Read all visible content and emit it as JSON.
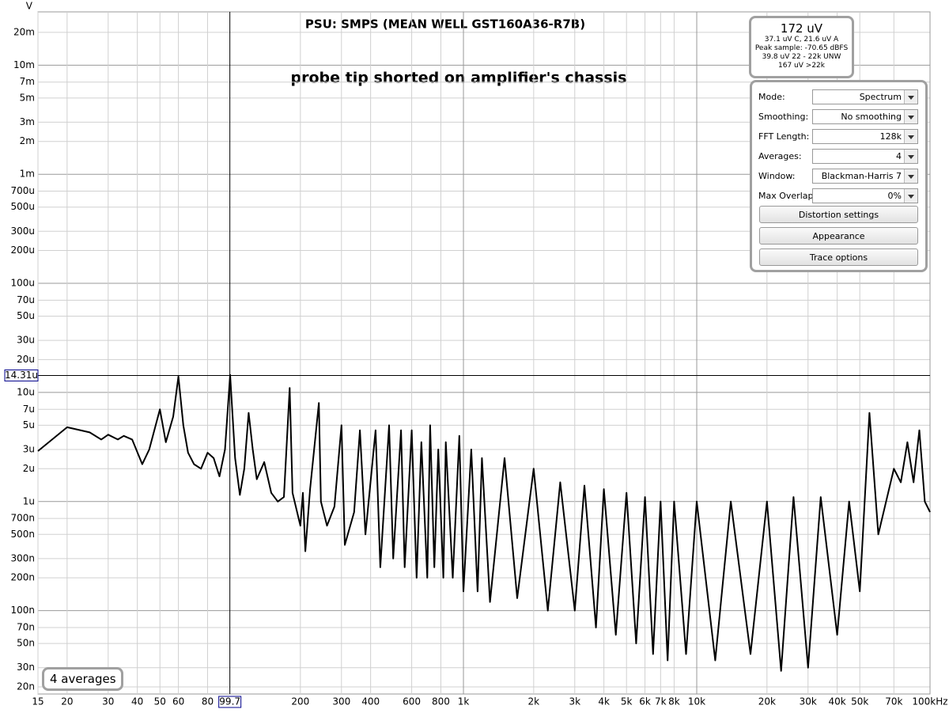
{
  "chart_data": {
    "type": "line",
    "title": "PSU: SMPS (MEAN WELL GST160A36-R7B)",
    "annotation": "probe tip shorted on amplifier's chassis",
    "y_unit": "V",
    "log_x": true,
    "log_y": true,
    "grid": true,
    "xlim": [
      15,
      100000
    ],
    "ylim": [
      1.72e-08,
      0.0308
    ],
    "xticks": [
      15,
      20,
      30,
      40,
      50,
      60,
      80,
      200,
      300,
      400,
      600,
      800,
      {
        "value": 1000,
        "label": "1k"
      },
      {
        "value": 2000,
        "label": "2k"
      },
      {
        "value": 3000,
        "label": "3k"
      },
      {
        "value": 4000,
        "label": "4k"
      },
      {
        "value": 5000,
        "label": "5k"
      },
      {
        "value": 6000,
        "label": "6k"
      },
      {
        "value": 7000,
        "label": "7k"
      },
      {
        "value": 8000,
        "label": "8k"
      },
      {
        "value": 10000,
        "label": "10k"
      },
      {
        "value": 20000,
        "label": "20k"
      },
      {
        "value": 30000,
        "label": "30k"
      },
      {
        "value": 40000,
        "label": "40k"
      },
      {
        "value": 50000,
        "label": "50k"
      },
      {
        "value": 70000,
        "label": "70k"
      },
      {
        "value": 100000,
        "label": "100kHz"
      }
    ],
    "yticks": [
      {
        "value": 0.02,
        "label": "20m"
      },
      {
        "value": 0.01,
        "label": "10m"
      },
      {
        "value": 0.007,
        "label": "7m"
      },
      {
        "value": 0.005,
        "label": "5m"
      },
      {
        "value": 0.003,
        "label": "3m"
      },
      {
        "value": 0.002,
        "label": "2m"
      },
      {
        "value": 0.001,
        "label": "1m"
      },
      {
        "value": 0.0007,
        "label": "700u"
      },
      {
        "value": 0.0005,
        "label": "500u"
      },
      {
        "value": 0.0003,
        "label": "300u"
      },
      {
        "value": 0.0002,
        "label": "200u"
      },
      {
        "value": 0.0001,
        "label": "100u"
      },
      {
        "value": 7e-05,
        "label": "70u"
      },
      {
        "value": 5e-05,
        "label": "50u"
      },
      {
        "value": 3e-05,
        "label": "30u"
      },
      {
        "value": 2e-05,
        "label": "20u"
      },
      {
        "value": 1e-05,
        "label": "10u"
      },
      {
        "value": 7e-06,
        "label": "7u"
      },
      {
        "value": 5e-06,
        "label": "5u"
      },
      {
        "value": 3e-06,
        "label": "3u"
      },
      {
        "value": 2e-06,
        "label": "2u"
      },
      {
        "value": 1e-06,
        "label": "1u"
      },
      {
        "value": 7e-07,
        "label": "700n"
      },
      {
        "value": 5e-07,
        "label": "500n"
      },
      {
        "value": 3e-07,
        "label": "300n"
      },
      {
        "value": 2e-07,
        "label": "200n"
      },
      {
        "value": 1e-07,
        "label": "100n"
      },
      {
        "value": 7e-08,
        "label": "70n"
      },
      {
        "value": 5e-08,
        "label": "50n"
      },
      {
        "value": 3e-08,
        "label": "30n"
      },
      {
        "value": 2e-08,
        "label": "20n"
      }
    ],
    "cursor": {
      "x": 99.7,
      "y": {
        "value": 1.431e-05,
        "label": "14.31u"
      }
    },
    "x": [
      15,
      20,
      25,
      28,
      30,
      33,
      35,
      38,
      42,
      45,
      50,
      53,
      57,
      60,
      63,
      66,
      70,
      75,
      80,
      85,
      90,
      95,
      100,
      105,
      110,
      115,
      120,
      125,
      130,
      140,
      150,
      160,
      170,
      180,
      185,
      200,
      205,
      210,
      220,
      240,
      245,
      260,
      280,
      300,
      310,
      340,
      360,
      380,
      420,
      440,
      480,
      500,
      540,
      560,
      600,
      630,
      660,
      700,
      720,
      750,
      780,
      820,
      840,
      900,
      960,
      1000,
      1080,
      1150,
      1200,
      1300,
      1500,
      1700,
      2000,
      2300,
      2600,
      3000,
      3300,
      3700,
      4000,
      4500,
      5000,
      5500,
      6000,
      6500,
      7000,
      7500,
      8000,
      9000,
      10000,
      12000,
      14000,
      17000,
      20000,
      23000,
      26000,
      30000,
      34000,
      40000,
      45000,
      50000,
      55000,
      60000,
      70000,
      75000,
      80000,
      85000,
      90000,
      95000,
      100000
    ],
    "series": [
      {
        "color": "#000000",
        "values": [
          2.9e-06,
          4.8e-06,
          4.3e-06,
          3.7e-06,
          4.1e-06,
          3.7e-06,
          4e-06,
          3.7e-06,
          2.2e-06,
          3e-06,
          7e-06,
          3.5e-06,
          6e-06,
          1.4e-05,
          5e-06,
          2.8e-06,
          2.2e-06,
          2e-06,
          2.8e-06,
          2.5e-06,
          1.7e-06,
          3e-06,
          1.45e-05,
          2.5e-06,
          1.15e-06,
          2e-06,
          6.5e-06,
          3e-06,
          1.6e-06,
          2.3e-06,
          1.2e-06,
          1e-06,
          1.1e-06,
          1.1e-05,
          1.2e-06,
          6e-07,
          1.2e-06,
          3.5e-07,
          1.3e-06,
          8e-06,
          1e-06,
          6e-07,
          9e-07,
          5e-06,
          4e-07,
          8e-07,
          4.5e-06,
          5e-07,
          4.5e-06,
          2.5e-07,
          5e-06,
          3e-07,
          4.5e-06,
          2.5e-07,
          4.5e-06,
          2e-07,
          3.5e-06,
          2e-07,
          5e-06,
          2.5e-07,
          3e-06,
          2e-07,
          3.5e-06,
          2e-07,
          4e-06,
          1.5e-07,
          3e-06,
          1.5e-07,
          2.5e-06,
          1.2e-07,
          2.5e-06,
          1.3e-07,
          2e-06,
          1e-07,
          1.5e-06,
          1e-07,
          1.4e-06,
          7e-08,
          1.3e-06,
          6e-08,
          1.2e-06,
          5e-08,
          1.1e-06,
          4e-08,
          1e-06,
          3.5e-08,
          1e-06,
          4e-08,
          1e-06,
          3.5e-08,
          1e-06,
          4e-08,
          1e-06,
          2.8e-08,
          1.1e-06,
          3e-08,
          1.1e-06,
          6e-08,
          1e-06,
          1.5e-07,
          6.5e-06,
          5e-07,
          2e-06,
          1.5e-06,
          3.5e-06,
          1.5e-06,
          4.5e-06,
          1e-06,
          8e-07
        ]
      }
    ]
  },
  "panel": {
    "readout": {
      "main": "172 uV",
      "lines": [
        "37.1 uV C, 21.6 uV A",
        "Peak sample: -70.65 dBFS",
        "39.8 uV 22 - 22k UNW",
        "167 uV >22k"
      ]
    },
    "controls": [
      {
        "label": "Mode:",
        "value": "Spectrum"
      },
      {
        "label": "Smoothing:",
        "value": "No  smoothing"
      },
      {
        "label": "FFT Length:",
        "value": "128k"
      },
      {
        "label": "Averages:",
        "value": "4"
      },
      {
        "label": "Window:",
        "value": "Blackman-Harris 7"
      },
      {
        "label": "Max Overlap:",
        "value": "0%"
      }
    ],
    "buttons": [
      "Distortion settings",
      "Appearance",
      "Trace options"
    ],
    "badge": "4 averages"
  }
}
